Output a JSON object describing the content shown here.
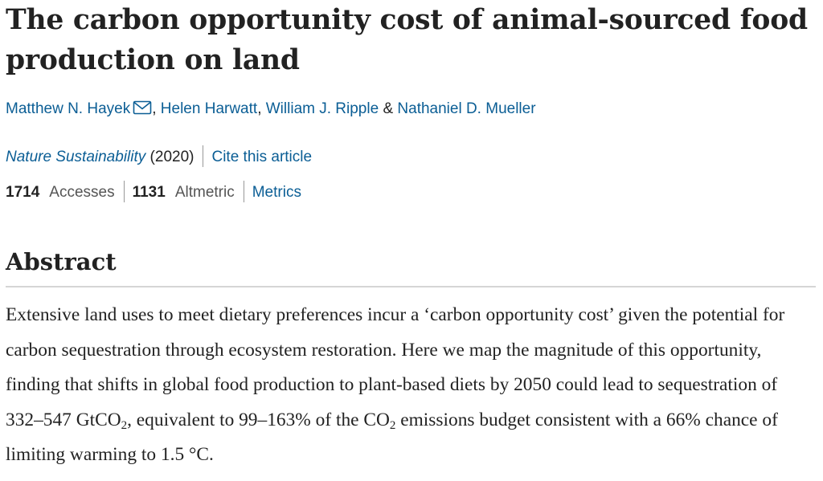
{
  "article": {
    "title": "The carbon opportunity cost of animal-sourced food production on land"
  },
  "authors": {
    "list": [
      "Matthew N. Hayek",
      "Helen Harwatt",
      "William J. Ripple",
      "Nathaniel D. Mueller"
    ],
    "sep": ", ",
    "and": " & ",
    "icon": "mail-icon"
  },
  "journal": {
    "name": "Nature Sustainability",
    "year": "(2020)",
    "cite_label": "Cite this article"
  },
  "metrics": {
    "accesses_count": "1714",
    "accesses_label": "Accesses",
    "altmetric_count": "1131",
    "altmetric_label": "Altmetric",
    "metrics_link": "Metrics"
  },
  "abstract": {
    "heading": "Abstract",
    "p1": "Extensive land uses to meet dietary preferences incur a ‘carbon opportunity cost’ given the potential for carbon sequestration through ecosystem restoration. Here we map the magnitude of this opportunity, finding that shifts in global food production to plant-based diets by 2050 could lead to sequestration of 332–547 GtCO",
    "sub1": "2",
    "p2": ", equivalent to 99–163% of the CO",
    "sub2": "2",
    "p3": " emissions budget consistent with a 66% chance of limiting warming to 1.5 °C."
  },
  "colors": {
    "link": "#0b5e95",
    "text": "#222222",
    "muted": "#555555",
    "rule": "#d5d5d5"
  }
}
